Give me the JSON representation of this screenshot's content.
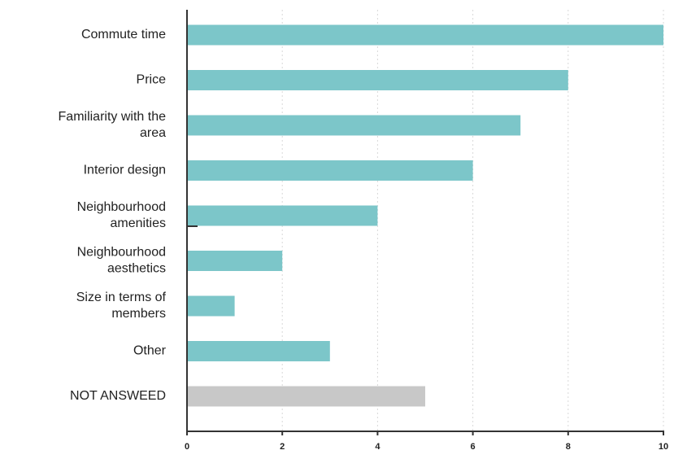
{
  "chart_data": {
    "type": "bar",
    "orientation": "horizontal",
    "categories": [
      "Commute time",
      "Price",
      "Familiarity with the area",
      "Interior design",
      "Neighbourhood amenities",
      "Neighbourhood aesthetics",
      "Size in terms of members",
      "Other",
      "NOT ANSWEED"
    ],
    "category_lines": [
      [
        "Commute time"
      ],
      [
        "Price"
      ],
      [
        "Familiarity with the",
        "area"
      ],
      [
        "Interior design"
      ],
      [
        "Neighbourhood",
        "amenities"
      ],
      [
        "Neighbourhood",
        "aesthetics"
      ],
      [
        "Size in terms of",
        "members"
      ],
      [
        "Other"
      ],
      [
        "NOT ANSWEED"
      ]
    ],
    "values": [
      10,
      8,
      7,
      6,
      4,
      2,
      1,
      3,
      5
    ],
    "xlim": [
      0,
      10
    ],
    "xticks": [
      0,
      2,
      4,
      6,
      8,
      10
    ],
    "grid": "vertical dashed",
    "colors": {
      "bar": "#7cc6c9",
      "not_answered_bar": "#c8c8c8",
      "axis": "#333333",
      "grid": "#d8d8d8"
    }
  }
}
